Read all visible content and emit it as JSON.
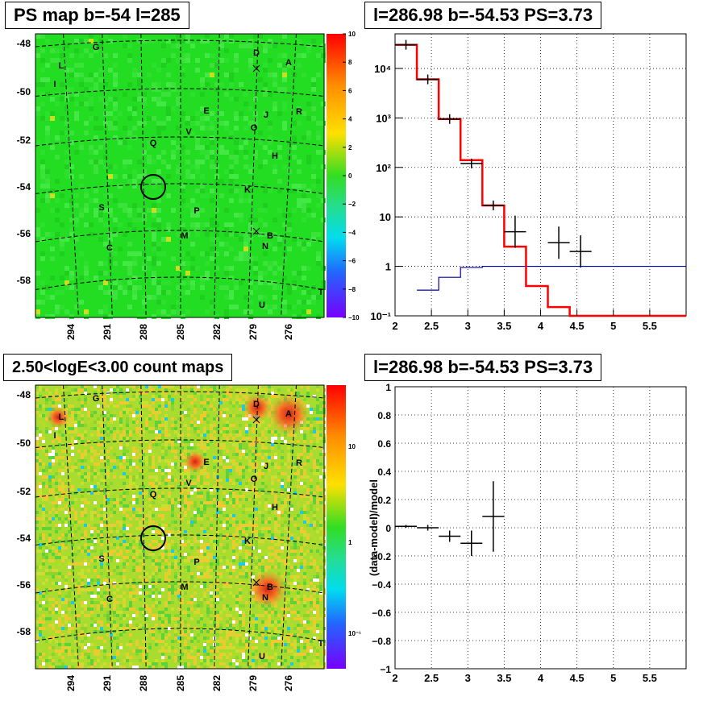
{
  "panels": {
    "psmap": {
      "title": "PS map b=-54 l=285",
      "lat_labels": [
        "-48",
        "-50",
        "-52",
        "-54",
        "-56",
        "-58"
      ],
      "lon_labels": [
        "294",
        "291",
        "288",
        "285",
        "282",
        "279",
        "276"
      ],
      "colorbar_labels": [
        "10",
        "8",
        "6",
        "4",
        "2",
        "0",
        "−2",
        "−4",
        "−6",
        "−8",
        "−10"
      ],
      "sources": [
        "G",
        "L",
        "I",
        "D",
        "A",
        "R",
        "J",
        "E",
        "O",
        "V",
        "Q",
        "H",
        "K",
        "P",
        "S",
        "M",
        "B",
        "N",
        "C",
        "T",
        "U"
      ]
    },
    "countmap": {
      "title": "2.50<logE<3.00 count maps",
      "lat_labels": [
        "-48",
        "-50",
        "-52",
        "-54",
        "-56",
        "-58"
      ],
      "lon_labels": [
        "294",
        "291",
        "288",
        "285",
        "282",
        "279",
        "276"
      ],
      "colorbar_labels": [
        "10",
        "1",
        "10⁻¹"
      ],
      "sources": [
        "G",
        "L",
        "I",
        "D",
        "A",
        "R",
        "J",
        "E",
        "O",
        "V",
        "Q",
        "H",
        "K",
        "P",
        "S",
        "M",
        "B",
        "N",
        "C",
        "T",
        "U"
      ]
    },
    "spectrum": {
      "title": "l=286.98 b=-54.53 PS=3.73",
      "xticks": [
        "2",
        "2.5",
        "3",
        "3.5",
        "4",
        "4.5",
        "5",
        "5.5"
      ],
      "yticks": [
        "10⁻¹",
        "1",
        "10",
        "10²",
        "10³",
        "10⁴"
      ]
    },
    "residual": {
      "title": "l=286.98 b=-54.53 PS=3.73",
      "ylabel": "(data-model)/model",
      "xticks": [
        "2",
        "2.5",
        "3",
        "3.5",
        "4",
        "4.5",
        "5",
        "5.5"
      ],
      "yticks": [
        "1",
        "0.8",
        "0.6",
        "0.4",
        "0.2",
        "0",
        "−0.2",
        "−0.4",
        "−0.6",
        "−0.8",
        "−1"
      ]
    }
  },
  "chart_data": [
    {
      "type": "heatmap",
      "title": "PS map b=-54 l=285",
      "xlabel": "",
      "ylabel": "",
      "x_ticks_deg": [
        294,
        291,
        288,
        285,
        282,
        279,
        276
      ],
      "y_ticks_deg": [
        -48,
        -50,
        -52,
        -54,
        -56,
        -58
      ],
      "color_range": [
        -10,
        10
      ],
      "highlight": {
        "l": 286.98,
        "b": -54.53
      }
    },
    {
      "type": "line",
      "title": "l=286.98 b=-54.53 PS=3.73",
      "log_y": true,
      "xlim": [
        2,
        6
      ],
      "ylim": [
        0.1,
        50000
      ],
      "series": [
        {
          "color": "#ff0000",
          "step_edges": [
            2,
            2.3,
            2.6,
            2.9,
            3.2,
            3.5,
            3.8,
            4.1,
            4.4,
            6
          ],
          "values": [
            30000,
            6000,
            950,
            140,
            17,
            2.5,
            0.4,
            0.15,
            0.1
          ]
        },
        {
          "color": "#0000aa",
          "step_edges": [
            2.3,
            2.6,
            2.9,
            3.2,
            3.5,
            3.8,
            6
          ],
          "values": [
            0.33,
            0.6,
            0.95,
            1.0,
            1.0,
            1.0
          ]
        },
        {
          "color": "#000000",
          "points": [
            {
              "x": 2.15,
              "y": 30000
            },
            {
              "x": 2.45,
              "y": 6000
            },
            {
              "x": 2.75,
              "y": 950
            },
            {
              "x": 3.05,
              "y": 120
            },
            {
              "x": 3.35,
              "y": 17
            },
            {
              "x": 3.65,
              "y": 5
            },
            {
              "x": 4.25,
              "y": 3
            },
            {
              "x": 4.55,
              "y": 2
            }
          ],
          "xerr": 0.15
        }
      ]
    },
    {
      "type": "scatter",
      "title": "l=286.98 b=-54.53 PS=3.73",
      "ylabel": "(data-model)/model",
      "xlim": [
        2,
        6
      ],
      "ylim": [
        -1,
        1
      ],
      "x": [
        2.15,
        2.45,
        2.75,
        3.05,
        3.35
      ],
      "y": [
        0.01,
        0.0,
        -0.06,
        -0.11,
        0.08
      ],
      "yerr": [
        0.01,
        0.02,
        0.04,
        0.09,
        0.25
      ],
      "xerr": 0.15
    }
  ]
}
